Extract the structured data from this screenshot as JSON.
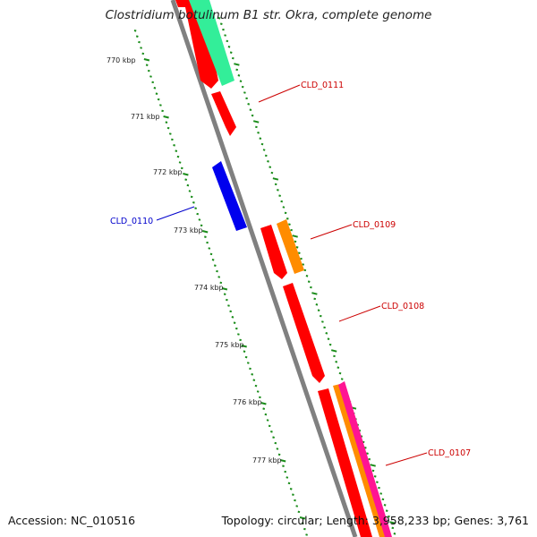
{
  "title": "Clostridium botulinum B1 str. Okra, complete genome",
  "footer": {
    "accession": "Accession: NC_010516",
    "summary": "Topology: circular; Length: 3,958,233 bp; Genes: 3,761"
  },
  "colors": {
    "backbone": "#808080",
    "tick": "#1a8c1a",
    "gene_red": "#ff0000",
    "gene_blue": "#0000ee",
    "gene_orange": "#ff8c00",
    "gene_aqua": "#33ee99",
    "gene_magenta": "#ff1493",
    "label_red": "#cc0000",
    "label_blue": "#0000cc"
  },
  "scale_labels": [
    "770 kbp",
    "771 kbp",
    "772 kbp",
    "773 kbp",
    "774 kbp",
    "775 kbp",
    "776 kbp",
    "777 kbp"
  ],
  "gene_labels": [
    "CLD_0111",
    "CLD_0110",
    "CLD_0109",
    "CLD_0108",
    "CLD_0107"
  ]
}
